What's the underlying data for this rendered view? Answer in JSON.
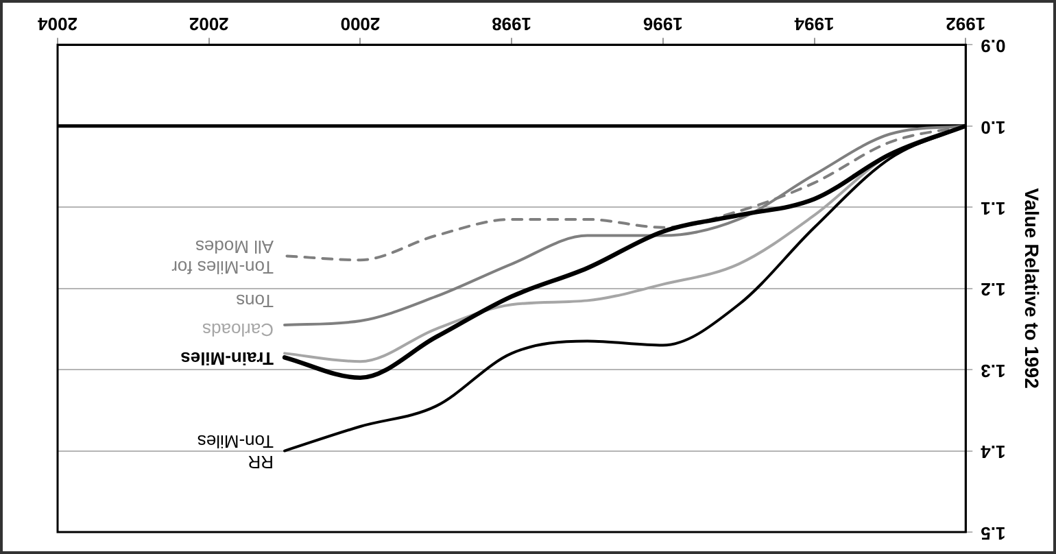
{
  "chart_data": {
    "type": "line",
    "ylabel": "Value Relative to 1992",
    "x": [
      1992,
      1993,
      1994,
      1995,
      1996,
      1997,
      1998,
      1999,
      2000,
      2001
    ],
    "xlim": [
      2004,
      1992
    ],
    "xticks": [
      1992,
      1994,
      1996,
      1998,
      2000,
      2002,
      2004
    ],
    "ylim": [
      1.5,
      0.9
    ],
    "yticks": [
      {
        "value": 0.9,
        "label": "0.9"
      },
      {
        "value": 1,
        "label": "1.0"
      },
      {
        "value": 1.1,
        "label": "1.1"
      },
      {
        "value": 1.2,
        "label": "1.2"
      },
      {
        "value": 1.3,
        "label": "1.3"
      },
      {
        "value": 1.4,
        "label": "1.4"
      },
      {
        "value": 1.5,
        "label": "1.5"
      }
    ],
    "grid": "y",
    "legend": false,
    "marker": "none",
    "ref_lines": [
      {
        "axis": "y",
        "value": 1,
        "color": "#000000"
      }
    ],
    "series": [
      {
        "name": "RR Ton-Miles",
        "color": "#000000",
        "values": [
          1.0,
          1.04,
          1.125,
          1.22,
          1.27,
          1.265,
          1.28,
          1.345,
          1.37,
          1.4
        ]
      },
      {
        "name": "Train-Miles",
        "color": "#000000",
        "values": [
          1.0,
          1.035,
          1.09,
          1.11,
          1.13,
          1.175,
          1.21,
          1.26,
          1.31,
          1.285
        ]
      },
      {
        "name": "Carloads",
        "color": "#a6a6a6",
        "values": [
          1.0,
          1.035,
          1.11,
          1.17,
          1.195,
          1.215,
          1.22,
          1.25,
          1.29,
          1.28
        ]
      },
      {
        "name": "Tons",
        "color": "#7f7f7f",
        "values": [
          1.0,
          1.01,
          1.06,
          1.115,
          1.135,
          1.135,
          1.17,
          1.21,
          1.24,
          1.245
        ]
      },
      {
        "name": "Ton-Miles for All Modes",
        "color": "#7f7f7f",
        "line_style": "dashed",
        "values": [
          1.0,
          1.02,
          1.07,
          1.105,
          1.125,
          1.115,
          1.115,
          1.135,
          1.165,
          1.16
        ]
      }
    ]
  }
}
